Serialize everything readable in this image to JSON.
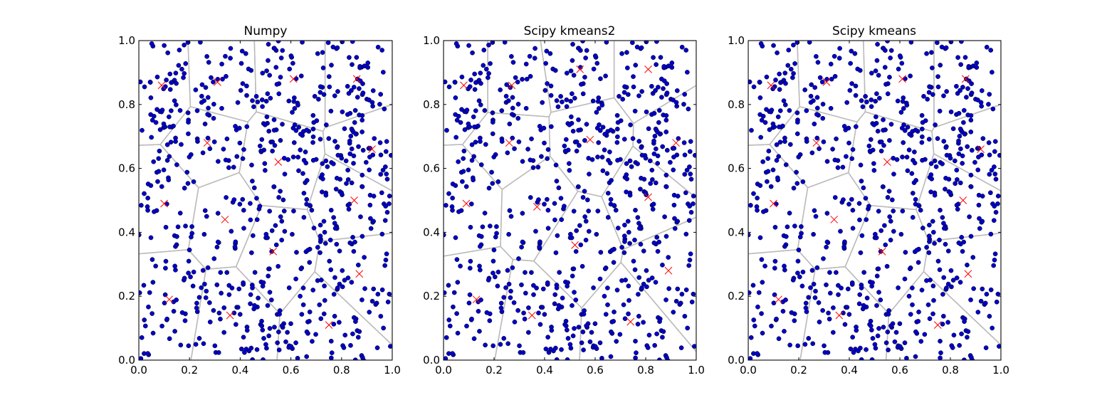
{
  "chart_data": [
    {
      "type": "scatter",
      "title": "Numpy",
      "xlim": [
        0.0,
        1.0
      ],
      "ylim": [
        0.0,
        1.0
      ],
      "xticks": [
        "0.0",
        "0.2",
        "0.4",
        "0.6",
        "0.8",
        "1.0"
      ],
      "yticks": [
        "0.0",
        "0.2",
        "0.4",
        "0.6",
        "0.8",
        "1.0"
      ],
      "grid": false,
      "series": [
        {
          "marker": "circle",
          "color": "#0000cc",
          "count": 700,
          "distribution": "uniform on [0,1]x[0,1]"
        },
        {
          "marker": "x",
          "color": "#ff0000",
          "x": [
            0.09,
            0.31,
            0.61,
            0.86,
            0.27,
            0.55,
            0.92,
            0.1,
            0.34,
            0.85,
            0.53,
            0.87,
            0.12,
            0.36,
            0.75
          ],
          "y": [
            0.86,
            0.87,
            0.88,
            0.88,
            0.68,
            0.62,
            0.66,
            0.49,
            0.44,
            0.5,
            0.34,
            0.27,
            0.19,
            0.14,
            0.11
          ]
        }
      ],
      "regions": "voronoi cells of the centroids",
      "region_color": "#bbbbbb"
    },
    {
      "type": "scatter",
      "title": "Scipy kmeans2",
      "xlim": [
        0.0,
        1.0
      ],
      "ylim": [
        0.0,
        1.0
      ],
      "xticks": [
        "0.0",
        "0.2",
        "0.4",
        "0.6",
        "0.8",
        "1.0"
      ],
      "yticks": [
        "0.0",
        "0.2",
        "0.4",
        "0.6",
        "0.8",
        "1.0"
      ],
      "grid": false,
      "series": [
        {
          "marker": "circle",
          "color": "#0000cc",
          "count": 700,
          "distribution": "uniform on [0,1]x[0,1]"
        },
        {
          "marker": "x",
          "color": "#ff0000",
          "x": [
            0.08,
            0.27,
            0.54,
            0.81,
            0.26,
            0.58,
            0.92,
            0.09,
            0.37,
            0.81,
            0.52,
            0.89,
            0.13,
            0.35,
            0.74
          ],
          "y": [
            0.86,
            0.86,
            0.91,
            0.91,
            0.68,
            0.69,
            0.68,
            0.49,
            0.48,
            0.51,
            0.36,
            0.28,
            0.19,
            0.14,
            0.12
          ]
        }
      ],
      "regions": "voronoi cells of the centroids",
      "region_color": "#bbbbbb"
    },
    {
      "type": "scatter",
      "title": "Scipy kmeans",
      "xlim": [
        0.0,
        1.0
      ],
      "ylim": [
        0.0,
        1.0
      ],
      "xticks": [
        "0.0",
        "0.2",
        "0.4",
        "0.6",
        "0.8",
        "1.0"
      ],
      "yticks": [
        "0.0",
        "0.2",
        "0.4",
        "0.6",
        "0.8",
        "1.0"
      ],
      "grid": false,
      "series": [
        {
          "marker": "circle",
          "color": "#0000cc",
          "count": 700,
          "distribution": "uniform on [0,1]x[0,1]"
        },
        {
          "marker": "x",
          "color": "#ff0000",
          "x": [
            0.09,
            0.31,
            0.61,
            0.86,
            0.27,
            0.55,
            0.92,
            0.1,
            0.34,
            0.85,
            0.53,
            0.87,
            0.12,
            0.36,
            0.75
          ],
          "y": [
            0.86,
            0.87,
            0.88,
            0.88,
            0.68,
            0.62,
            0.66,
            0.49,
            0.44,
            0.5,
            0.34,
            0.27,
            0.19,
            0.14,
            0.11
          ]
        }
      ],
      "regions": "voronoi cells of the centroids",
      "region_color": "#bbbbbb"
    }
  ]
}
